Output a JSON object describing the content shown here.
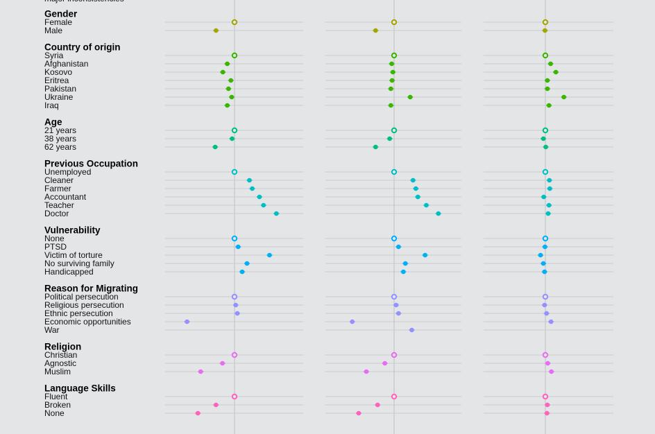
{
  "chart_data": {
    "type": "scatter",
    "title": "",
    "xlabel": "",
    "ylabel": "",
    "top_partial_label": "major inconsistencies",
    "panels": 3,
    "x_range_note": "reference level at 0 in each panel",
    "groups": [
      {
        "name": "Gender",
        "color": "#a3a500",
        "levels": [
          "Female",
          "Male"
        ],
        "values": [
          [
            0,
            -0.046
          ],
          [
            0,
            -0.046
          ],
          [
            0,
            -0.001
          ]
        ]
      },
      {
        "name": "Country of origin",
        "color": "#39b600",
        "levels": [
          "Syria",
          "Afghanistan",
          "Kosovo",
          "Eritrea",
          "Pakistan",
          "Ukraine",
          "Iraq"
        ],
        "values": [
          [
            0,
            -0.018,
            -0.029,
            -0.009,
            -0.015,
            -0.007,
            -0.018
          ],
          [
            0,
            -0.006,
            -0.003,
            -0.005,
            -0.008,
            0.04,
            -0.008
          ],
          [
            0,
            0.013,
            0.026,
            0.005,
            0.005,
            0.046,
            0.009
          ]
        ]
      },
      {
        "name": "Age",
        "color": "#00bf7d",
        "levels": [
          "21 years",
          "38 years",
          "62 years"
        ],
        "values": [
          [
            0,
            -0.006,
            -0.048
          ],
          [
            0,
            -0.011,
            -0.046
          ],
          [
            0,
            -0.005,
            0.001
          ]
        ]
      },
      {
        "name": "Previous Occupation",
        "color": "#00bfc4",
        "levels": [
          "Unemployed",
          "Cleaner",
          "Farmer",
          "Accountant",
          "Teacher",
          "Doctor"
        ],
        "values": [
          [
            0,
            0.037,
            0.044,
            0.062,
            0.072,
            0.104
          ],
          [
            0,
            0.047,
            0.054,
            0.059,
            0.08,
            0.11
          ],
          [
            0,
            0.01,
            0.011,
            -0.004,
            0.009,
            0.007
          ]
        ]
      },
      {
        "name": "Vulnerability",
        "color": "#00b0f6",
        "levels": [
          "None",
          "PTSD",
          "Victim of torture",
          "No surviving family",
          "Handicapped"
        ],
        "values": [
          [
            0,
            0.009,
            0.087,
            0.031,
            0.019
          ],
          [
            0,
            0.011,
            0.077,
            0.028,
            0.023
          ],
          [
            0,
            -0.001,
            -0.012,
            -0.005,
            -0.002
          ]
        ]
      },
      {
        "name": "Reason for Migrating",
        "color": "#9590ff",
        "levels": [
          "Political persecution",
          "Religious persecution",
          "Ethnic persecution",
          "Economic opportunities",
          "War"
        ],
        "values": [
          [
            0,
            0.003,
            0.007,
            -0.118,
            null
          ],
          [
            0,
            0.005,
            0.011,
            -0.104,
            0.044
          ],
          [
            0,
            -0.002,
            0.003,
            0.014,
            null
          ]
        ]
      },
      {
        "name": "Religion",
        "color": "#e76bf3",
        "levels": [
          "Christian",
          "Agnostic",
          "Muslim"
        ],
        "values": [
          [
            0,
            -0.03,
            -0.084
          ],
          [
            0,
            -0.023,
            -0.069
          ],
          [
            0,
            0.006,
            0.015
          ]
        ]
      },
      {
        "name": "Language Skills",
        "color": "#ff62bc",
        "levels": [
          "Fluent",
          "Broken",
          "None"
        ],
        "values": [
          [
            0,
            -0.046,
            -0.091
          ],
          [
            0,
            -0.041,
            -0.088
          ],
          [
            0,
            0.005,
            0.004
          ]
        ]
      }
    ]
  }
}
